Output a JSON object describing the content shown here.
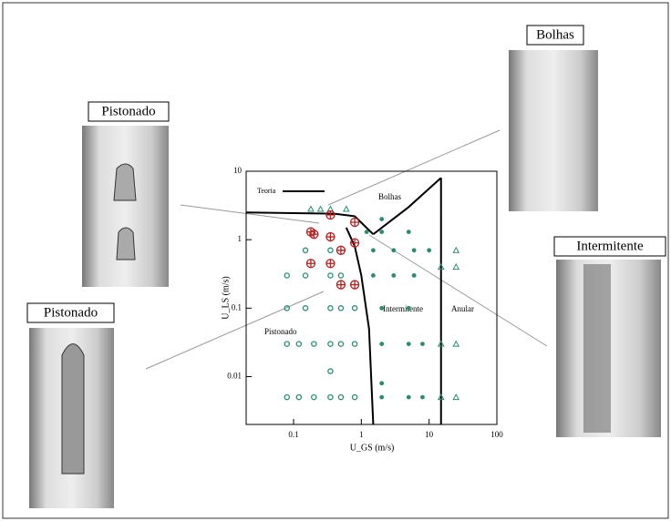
{
  "chart_data": {
    "type": "scatter",
    "xlabel": "U_GS (m/s)",
    "ylabel": "U_LS (m/s)",
    "log_x": true,
    "log_y": true,
    "xlim": [
      0.02,
      100
    ],
    "ylim": [
      0.002,
      10
    ],
    "xticks": [
      0.1,
      1,
      10,
      100
    ],
    "yticks": [
      0.01,
      0.1,
      1,
      10
    ],
    "annotations": [
      "Bolhas",
      "Intermitente",
      "Anular",
      "Pistonado"
    ],
    "series": [
      {
        "name": "Teoria",
        "type": "line",
        "color": "#000000",
        "x": [
          0.02,
          0.4,
          0.8,
          1.5,
          null,
          1.5,
          5,
          15,
          null,
          0.6,
          0.8,
          1.0,
          1.3,
          1.5,
          null,
          15,
          15
        ],
        "values": [
          2.5,
          2.4,
          2.2,
          1.2,
          null,
          1.2,
          3,
          8,
          null,
          1.5,
          0.8,
          0.3,
          0.05,
          0.002,
          null,
          0.002,
          8
        ]
      },
      {
        "marker": "circle",
        "color": "#2e8b6e",
        "x": [
          0.08,
          0.12,
          0.2,
          0.35,
          0.5,
          0.8,
          0.08,
          0.12,
          0.2,
          0.35,
          0.5,
          0.8,
          0.08,
          0.15,
          0.35,
          0.5,
          0.8,
          0.08,
          0.15,
          0.35,
          0.5,
          0.15,
          0.35,
          0.35
        ],
        "values": [
          0.005,
          0.005,
          0.005,
          0.005,
          0.005,
          0.005,
          0.03,
          0.03,
          0.03,
          0.03,
          0.03,
          0.03,
          0.1,
          0.1,
          0.1,
          0.1,
          0.1,
          0.3,
          0.3,
          0.3,
          0.3,
          0.7,
          0.7,
          0.012
        ]
      },
      {
        "marker": "dot",
        "color": "#2e8b6e",
        "x": [
          2,
          5,
          8,
          2,
          5,
          8,
          1.5,
          3,
          6,
          1.5,
          3,
          6,
          10,
          2,
          5,
          2,
          5,
          1.2,
          2,
          2
        ],
        "values": [
          0.005,
          0.005,
          0.005,
          0.03,
          0.03,
          0.03,
          0.3,
          0.3,
          0.3,
          0.7,
          0.7,
          0.7,
          0.7,
          1.3,
          1.3,
          0.1,
          0.1,
          1.3,
          2,
          0.008
        ]
      },
      {
        "marker": "triangle",
        "color": "#2e8b6e",
        "x": [
          15,
          25,
          15,
          25,
          15,
          25,
          25,
          0.18,
          0.25,
          0.35,
          0.6
        ],
        "values": [
          0.005,
          0.005,
          0.03,
          0.03,
          0.4,
          0.4,
          0.7,
          2.8,
          2.8,
          2.8,
          2.8
        ]
      },
      {
        "marker": "cross",
        "color": "#b22222",
        "x": [
          0.18,
          0.18,
          0.35,
          0.35,
          0.35,
          0.5,
          0.5,
          0.8,
          0.8,
          0.8,
          0.2
        ],
        "values": [
          1.3,
          0.45,
          2.3,
          1.1,
          0.45,
          0.7,
          0.22,
          0.22,
          1.8,
          0.9,
          1.2
        ]
      }
    ]
  },
  "photos": [
    "Bolhas",
    "Pistonado",
    "Intermitente",
    "Pistonado"
  ]
}
